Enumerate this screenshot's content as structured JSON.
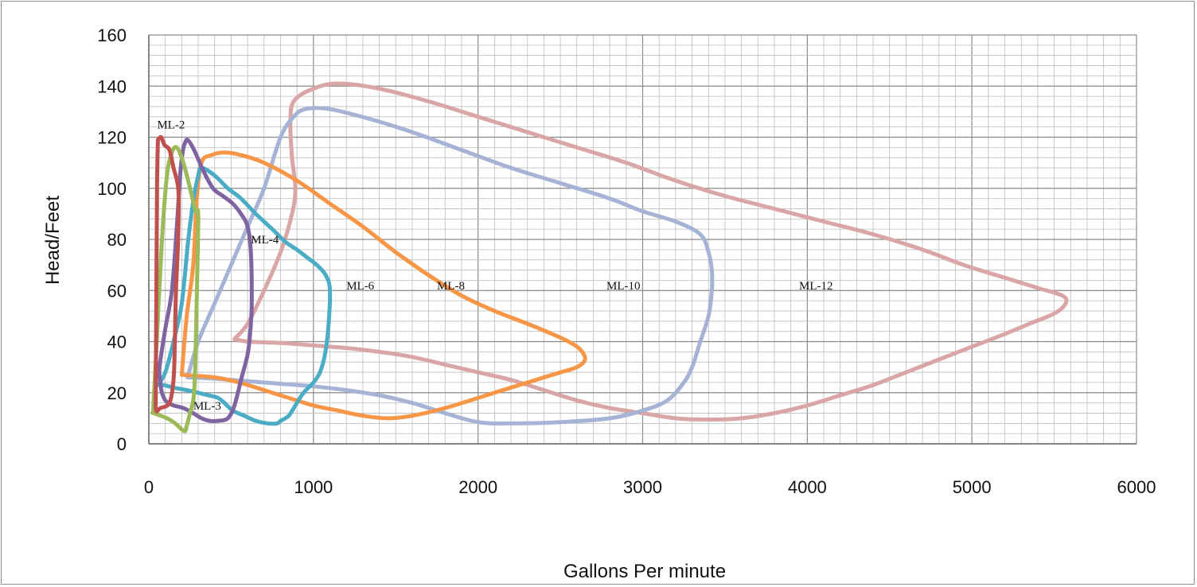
{
  "chart_data": {
    "type": "line",
    "title": "",
    "xlabel": "Gallons Per minute",
    "ylabel": "Head/Feet",
    "xlim": [
      0,
      6000
    ],
    "ylim": [
      0,
      160
    ],
    "x_major_ticks": [
      "0",
      "1000",
      "2000",
      "3000",
      "4000",
      "5000",
      "6000"
    ],
    "y_major_ticks": [
      "0",
      "20",
      "40",
      "60",
      "80",
      "100",
      "120",
      "140",
      "160"
    ],
    "grid": {
      "major": true,
      "minor": true,
      "x_minor_step": 100,
      "y_minor_step": 4
    },
    "legend": "none",
    "series": [
      {
        "name": "ML-2",
        "color": "#c0504d",
        "label_at": [
          50,
          125
        ],
        "points": [
          [
            55,
            119
          ],
          [
            75,
            120
          ],
          [
            95,
            117
          ],
          [
            125,
            115
          ],
          [
            150,
            108
          ],
          [
            180,
            99
          ],
          [
            178,
            80
          ],
          [
            165,
            60
          ],
          [
            158,
            40
          ],
          [
            150,
            25
          ],
          [
            125,
            16
          ],
          [
            70,
            14
          ],
          [
            45,
            13
          ],
          [
            42,
            20
          ],
          [
            45,
            50
          ],
          [
            50,
            100
          ],
          [
            55,
            119
          ]
        ]
      },
      {
        "name": "ML-3",
        "color": "#9bbb59",
        "label_at": [
          270,
          15
        ],
        "points": [
          [
            25,
            12
          ],
          [
            40,
            30
          ],
          [
            80,
            80
          ],
          [
            110,
            105
          ],
          [
            140,
            114
          ],
          [
            170,
            116
          ],
          [
            205,
            111
          ],
          [
            235,
            104
          ],
          [
            265,
            96
          ],
          [
            285,
            91
          ],
          [
            300,
            89
          ],
          [
            292,
            60
          ],
          [
            282,
            30
          ],
          [
            272,
            18
          ],
          [
            250,
            12
          ],
          [
            230,
            7
          ],
          [
            215,
            5
          ],
          [
            160,
            8
          ],
          [
            110,
            10
          ],
          [
            30,
            12
          ],
          [
            25,
            12
          ]
        ]
      },
      {
        "name": "ML-4",
        "color": "#8064a2",
        "label_at": [
          620,
          80
        ],
        "points": [
          [
            215,
            117
          ],
          [
            235,
            119
          ],
          [
            275,
            115
          ],
          [
            330,
            107
          ],
          [
            390,
            100
          ],
          [
            450,
            97
          ],
          [
            510,
            94
          ],
          [
            560,
            90
          ],
          [
            600,
            85
          ],
          [
            620,
            75
          ],
          [
            625,
            55
          ],
          [
            615,
            43
          ],
          [
            600,
            35
          ],
          [
            560,
            25
          ],
          [
            520,
            15
          ],
          [
            480,
            10
          ],
          [
            420,
            9
          ],
          [
            370,
            9
          ],
          [
            320,
            10
          ],
          [
            270,
            12
          ],
          [
            210,
            14
          ],
          [
            150,
            15
          ],
          [
            120,
            16
          ],
          [
            100,
            17
          ],
          [
            80,
            20
          ],
          [
            70,
            24
          ],
          [
            65,
            30
          ],
          [
            100,
            45
          ],
          [
            140,
            60
          ],
          [
            170,
            85
          ],
          [
            190,
            105
          ],
          [
            205,
            114
          ],
          [
            215,
            117
          ]
        ]
      },
      {
        "name": "ML-6",
        "color": "#4bacc6",
        "label_at": [
          1200,
          62
        ],
        "points": [
          [
            55,
            23
          ],
          [
            100,
            28
          ],
          [
            150,
            40
          ],
          [
            200,
            55
          ],
          [
            240,
            80
          ],
          [
            270,
            95
          ],
          [
            300,
            105
          ],
          [
            320,
            108
          ],
          [
            400,
            105
          ],
          [
            480,
            100
          ],
          [
            560,
            96
          ],
          [
            650,
            90
          ],
          [
            750,
            84
          ],
          [
            830,
            79
          ],
          [
            900,
            76
          ],
          [
            960,
            73
          ],
          [
            1020,
            70
          ],
          [
            1075,
            66
          ],
          [
            1100,
            60
          ],
          [
            1090,
            45
          ],
          [
            1070,
            35
          ],
          [
            1040,
            28
          ],
          [
            1000,
            24
          ],
          [
            940,
            20
          ],
          [
            890,
            15
          ],
          [
            850,
            11
          ],
          [
            800,
            9
          ],
          [
            780,
            8
          ],
          [
            720,
            8
          ],
          [
            650,
            9
          ],
          [
            580,
            11
          ],
          [
            510,
            13
          ],
          [
            460,
            16
          ],
          [
            420,
            18
          ],
          [
            360,
            19
          ],
          [
            300,
            20
          ],
          [
            230,
            21
          ],
          [
            150,
            22
          ],
          [
            90,
            23
          ],
          [
            55,
            23
          ]
        ]
      },
      {
        "name": "ML-8",
        "color": "#f79646",
        "label_at": [
          1750,
          62
        ],
        "points": [
          [
            200,
            27
          ],
          [
            230,
            50
          ],
          [
            270,
            70
          ],
          [
            290,
            95
          ],
          [
            320,
            110
          ],
          [
            380,
            113
          ],
          [
            460,
            114
          ],
          [
            560,
            113
          ],
          [
            700,
            110
          ],
          [
            900,
            103
          ],
          [
            1100,
            94
          ],
          [
            1300,
            85
          ],
          [
            1500,
            75
          ],
          [
            1700,
            66
          ],
          [
            1900,
            58
          ],
          [
            2100,
            52
          ],
          [
            2300,
            47
          ],
          [
            2450,
            43
          ],
          [
            2550,
            40
          ],
          [
            2620,
            37
          ],
          [
            2650,
            33
          ],
          [
            2600,
            30
          ],
          [
            2500,
            28
          ],
          [
            2350,
            25
          ],
          [
            2200,
            22
          ],
          [
            2000,
            18
          ],
          [
            1800,
            14
          ],
          [
            1600,
            11
          ],
          [
            1450,
            10
          ],
          [
            1300,
            11
          ],
          [
            1150,
            13
          ],
          [
            1000,
            15
          ],
          [
            850,
            18
          ],
          [
            700,
            21
          ],
          [
            550,
            24
          ],
          [
            400,
            26
          ],
          [
            200,
            27
          ]
        ]
      },
      {
        "name": "ML-10",
        "color": "#a5b3d5",
        "label_at": [
          2780,
          62
        ],
        "points": [
          [
            235,
            26
          ],
          [
            300,
            40
          ],
          [
            400,
            55
          ],
          [
            500,
            70
          ],
          [
            600,
            85
          ],
          [
            700,
            100
          ],
          [
            800,
            120
          ],
          [
            880,
            128
          ],
          [
            950,
            131
          ],
          [
            1100,
            131
          ],
          [
            1350,
            127
          ],
          [
            1600,
            122
          ],
          [
            1900,
            115
          ],
          [
            2200,
            108
          ],
          [
            2500,
            102
          ],
          [
            2800,
            96
          ],
          [
            3000,
            91
          ],
          [
            3200,
            87
          ],
          [
            3350,
            82
          ],
          [
            3400,
            75
          ],
          [
            3420,
            68
          ],
          [
            3420,
            60
          ],
          [
            3400,
            50
          ],
          [
            3350,
            40
          ],
          [
            3300,
            30
          ],
          [
            3250,
            24
          ],
          [
            3150,
            17
          ],
          [
            3000,
            13
          ],
          [
            2800,
            10
          ],
          [
            2500,
            8.5
          ],
          [
            2200,
            8
          ],
          [
            2000,
            8.5
          ],
          [
            1800,
            12
          ],
          [
            1600,
            16
          ],
          [
            1400,
            19
          ],
          [
            1200,
            21
          ],
          [
            1000,
            22.5
          ],
          [
            800,
            23.5
          ],
          [
            600,
            24.5
          ],
          [
            400,
            25.5
          ],
          [
            235,
            26
          ]
        ]
      },
      {
        "name": "ML-12",
        "color": "#d9a5a5",
        "label_at": [
          3950,
          62
        ],
        "points": [
          [
            520,
            41
          ],
          [
            600,
            47
          ],
          [
            700,
            60
          ],
          [
            800,
            75
          ],
          [
            870,
            90
          ],
          [
            890,
            100
          ],
          [
            870,
            112
          ],
          [
            860,
            125
          ],
          [
            880,
            134
          ],
          [
            1000,
            139
          ],
          [
            1150,
            141
          ],
          [
            1400,
            139
          ],
          [
            1700,
            134
          ],
          [
            2000,
            128
          ],
          [
            2300,
            122
          ],
          [
            2600,
            116
          ],
          [
            2900,
            110
          ],
          [
            3200,
            103
          ],
          [
            3500,
            97
          ],
          [
            3800,
            92
          ],
          [
            4100,
            87
          ],
          [
            4400,
            82
          ],
          [
            4700,
            76
          ],
          [
            4950,
            70
          ],
          [
            5200,
            65
          ],
          [
            5400,
            61
          ],
          [
            5550,
            58
          ],
          [
            5570,
            55
          ],
          [
            5500,
            51
          ],
          [
            5350,
            47
          ],
          [
            5200,
            43
          ],
          [
            5000,
            38
          ],
          [
            4800,
            33
          ],
          [
            4600,
            28
          ],
          [
            4400,
            23
          ],
          [
            4200,
            19
          ],
          [
            4000,
            15
          ],
          [
            3800,
            12
          ],
          [
            3600,
            10
          ],
          [
            3400,
            9.5
          ],
          [
            3200,
            10
          ],
          [
            3000,
            12
          ],
          [
            2800,
            14
          ],
          [
            2600,
            17
          ],
          [
            2400,
            21
          ],
          [
            2200,
            25
          ],
          [
            2000,
            28
          ],
          [
            1800,
            31
          ],
          [
            1600,
            34
          ],
          [
            1400,
            36
          ],
          [
            1200,
            37.5
          ],
          [
            1000,
            38.5
          ],
          [
            800,
            39.5
          ],
          [
            600,
            40
          ],
          [
            520,
            41
          ]
        ]
      }
    ]
  }
}
